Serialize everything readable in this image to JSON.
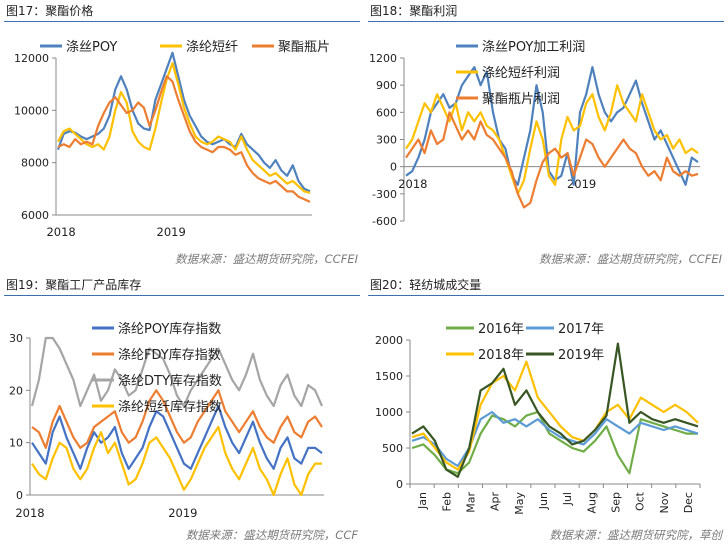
{
  "panels": [
    {
      "title": "图17：聚酯价格",
      "source": "数据来源：盛达期货研究院，CCFEI"
    },
    {
      "title": "图18：聚酯利润",
      "source": "数据来源：盛达期货研究院，CCFEI"
    },
    {
      "title": "图19：聚酯工厂产品库存",
      "source": "数据来源：盛达期货研究院，CCF"
    },
    {
      "title": "图20：轻纺城成交量",
      "source": "数据来源：盛达期货研究院，草创"
    }
  ],
  "chart_data": [
    {
      "type": "line",
      "ylim": [
        6000,
        12000
      ],
      "yticks": [
        6000,
        8000,
        10000,
        12000
      ],
      "x_tick_labels": [
        "2018",
        "2019"
      ],
      "grid": false,
      "legend": "top",
      "series": [
        {
          "name": "涤丝POY",
          "color": "#4f81bd",
          "values": [
            8500,
            9100,
            9200,
            9150,
            9000,
            8900,
            9000,
            9100,
            9300,
            9800,
            10800,
            11300,
            10800,
            10000,
            9500,
            9300,
            9250,
            10400,
            11000,
            11600,
            12200,
            11300,
            10400,
            9800,
            9400,
            9000,
            8800,
            8700,
            8800,
            8900,
            8700,
            8600,
            9100,
            8700,
            8500,
            8300,
            8000,
            7800,
            8100,
            7700,
            7500,
            7900,
            7300,
            7000,
            6900
          ]
        },
        {
          "name": "涤纶短纤",
          "color": "#ffc000",
          "values": [
            8800,
            9200,
            9300,
            9100,
            8900,
            8700,
            8600,
            8700,
            8500,
            9000,
            10000,
            10700,
            10300,
            9200,
            8800,
            8600,
            8500,
            9300,
            10300,
            11200,
            11800,
            11000,
            10100,
            9500,
            9000,
            8800,
            8700,
            8800,
            9000,
            8900,
            8800,
            8500,
            9000,
            8500,
            8100,
            7900,
            7700,
            7500,
            7600,
            7400,
            7200,
            7300,
            7100,
            6900,
            6850
          ]
        },
        {
          "name": "聚酯瓶片",
          "color": "#ed7d31",
          "values": [
            8600,
            8700,
            8600,
            8900,
            8700,
            8800,
            8700,
            9400,
            9900,
            10300,
            10500,
            10200,
            9900,
            10000,
            10300,
            10100,
            9400,
            10000,
            10700,
            11300,
            11100,
            10400,
            9800,
            9200,
            8800,
            8600,
            8500,
            8400,
            8600,
            8600,
            8500,
            8300,
            8400,
            7900,
            7600,
            7400,
            7300,
            7200,
            7300,
            7100,
            6900,
            6900,
            6700,
            6600,
            6500
          ]
        }
      ]
    },
    {
      "type": "line",
      "ylim": [
        -600,
        1200
      ],
      "yticks": [
        -600,
        -300,
        0,
        300,
        600,
        900,
        1200
      ],
      "x_tick_labels": [
        "2018",
        "2019"
      ],
      "grid": false,
      "legend": "top",
      "series": [
        {
          "name": "涤丝POY加工利润",
          "color": "#4f81bd",
          "values": [
            -100,
            -50,
            100,
            300,
            600,
            700,
            800,
            650,
            700,
            900,
            1000,
            1100,
            900,
            1050,
            600,
            300,
            200,
            -100,
            -200,
            100,
            400,
            900,
            600,
            -50,
            -150,
            -100,
            150,
            -200,
            600,
            800,
            1100,
            800,
            600,
            500,
            600,
            650,
            800,
            950,
            700,
            500,
            300,
            400,
            250,
            100,
            -50,
            -200,
            100,
            50
          ]
        },
        {
          "name": "涤纶短纤利润",
          "color": "#ffc000",
          "values": [
            200,
            300,
            500,
            700,
            600,
            800,
            650,
            500,
            700,
            400,
            600,
            500,
            600,
            450,
            400,
            300,
            100,
            -100,
            -300,
            -150,
            200,
            500,
            300,
            -100,
            -200,
            300,
            550,
            400,
            450,
            700,
            800,
            550,
            400,
            600,
            900,
            700,
            600,
            500,
            800,
            600,
            400,
            300,
            350,
            200,
            300,
            150,
            200,
            150
          ]
        },
        {
          "name": "聚酯瓶片利润",
          "color": "#ed7d31",
          "values": [
            100,
            200,
            300,
            150,
            400,
            250,
            300,
            600,
            450,
            300,
            400,
            300,
            500,
            350,
            300,
            200,
            100,
            -50,
            -300,
            -450,
            -400,
            -150,
            50,
            150,
            200,
            100,
            150,
            -100,
            100,
            300,
            250,
            100,
            0,
            100,
            200,
            300,
            200,
            150,
            0,
            -100,
            -50,
            -150,
            100,
            -50,
            -100,
            -50,
            -100,
            -80
          ]
        }
      ]
    },
    {
      "type": "line",
      "ylim": [
        0,
        30
      ],
      "yticks": [
        0,
        10,
        20,
        30
      ],
      "x_tick_labels": [
        "2018",
        "2019"
      ],
      "grid": false,
      "legend": "top",
      "series": [
        {
          "name": "涤纶POY库存指数",
          "color": "#4472c4",
          "values": [
            10,
            8,
            6,
            12,
            15,
            11,
            8,
            5,
            9,
            12,
            10,
            11,
            13,
            8,
            5,
            7,
            9,
            13,
            16,
            15,
            12,
            9,
            6,
            5,
            8,
            11,
            14,
            17,
            13,
            10,
            8,
            11,
            14,
            10,
            7,
            5,
            9,
            11,
            7,
            6,
            9,
            9,
            8
          ]
        },
        {
          "name": "涤纶FDY库存指数",
          "color": "#ed7d31",
          "values": [
            13,
            12,
            9,
            14,
            17,
            14,
            11,
            9,
            10,
            13,
            14,
            15,
            16,
            12,
            10,
            11,
            14,
            18,
            20,
            18,
            15,
            12,
            10,
            11,
            14,
            16,
            18,
            20,
            16,
            14,
            12,
            14,
            16,
            13,
            11,
            10,
            13,
            15,
            12,
            11,
            14,
            15,
            13
          ]
        },
        {
          "name": "涤纶DTY库存指数",
          "color": "#a5a5a5",
          "values": [
            17,
            22,
            30,
            30,
            28,
            25,
            22,
            17,
            20,
            23,
            18,
            20,
            24,
            22,
            19,
            20,
            24,
            28,
            27,
            26,
            23,
            19,
            17,
            20,
            22,
            24,
            26,
            28,
            25,
            22,
            20,
            23,
            27,
            22,
            19,
            17,
            21,
            23,
            19,
            17,
            21,
            20,
            17
          ]
        },
        {
          "name": "涤纶短纤库存指数",
          "color": "#ffc000",
          "values": [
            6,
            4,
            3,
            7,
            10,
            9,
            5,
            3,
            5,
            9,
            12,
            8,
            10,
            6,
            2,
            3,
            6,
            10,
            11,
            9,
            7,
            4,
            1,
            3,
            6,
            9,
            11,
            13,
            8,
            5,
            3,
            6,
            9,
            5,
            3,
            0,
            4,
            7,
            2,
            0,
            4,
            6,
            6
          ]
        }
      ]
    },
    {
      "type": "line",
      "ylim": [
        0,
        2000
      ],
      "yticks": [
        0,
        500,
        1000,
        1500,
        2000
      ],
      "x_tick_labels": [
        "Jan",
        "Feb",
        "Mar",
        "Apr",
        "May",
        "Jun",
        "Jul",
        "Aug",
        "Sep",
        "Oct",
        "Nov",
        "Dec"
      ],
      "grid": false,
      "legend": "top",
      "series": [
        {
          "name": "2016年",
          "color": "#70ad47",
          "values": [
            500,
            550,
            400,
            200,
            150,
            300,
            700,
            950,
            900,
            800,
            950,
            1000,
            700,
            600,
            500,
            450,
            600,
            800,
            400,
            150,
            900,
            850,
            800,
            750,
            700,
            700
          ]
        },
        {
          "name": "2017年",
          "color": "#5b9bd5",
          "values": [
            600,
            650,
            550,
            350,
            250,
            500,
            900,
            1000,
            850,
            900,
            800,
            900,
            750,
            650,
            600,
            550,
            700,
            900,
            800,
            700,
            850,
            800,
            750,
            800,
            750,
            700
          ]
        },
        {
          "name": "2018年",
          "color": "#ffc000",
          "values": [
            650,
            700,
            500,
            300,
            200,
            450,
            1100,
            1400,
            1500,
            1300,
            1700,
            1200,
            1000,
            800,
            650,
            600,
            750,
            1000,
            1100,
            900,
            1200,
            1100,
            1000,
            1100,
            1000,
            850
          ]
        },
        {
          "name": "2019年",
          "color": "#375623",
          "values": [
            700,
            800,
            600,
            200,
            100,
            500,
            1300,
            1400,
            1600,
            1100,
            1300,
            1000,
            800,
            700,
            550,
            600,
            750,
            950,
            1950,
            850,
            1000,
            900,
            850,
            900,
            850,
            800
          ]
        }
      ]
    }
  ]
}
